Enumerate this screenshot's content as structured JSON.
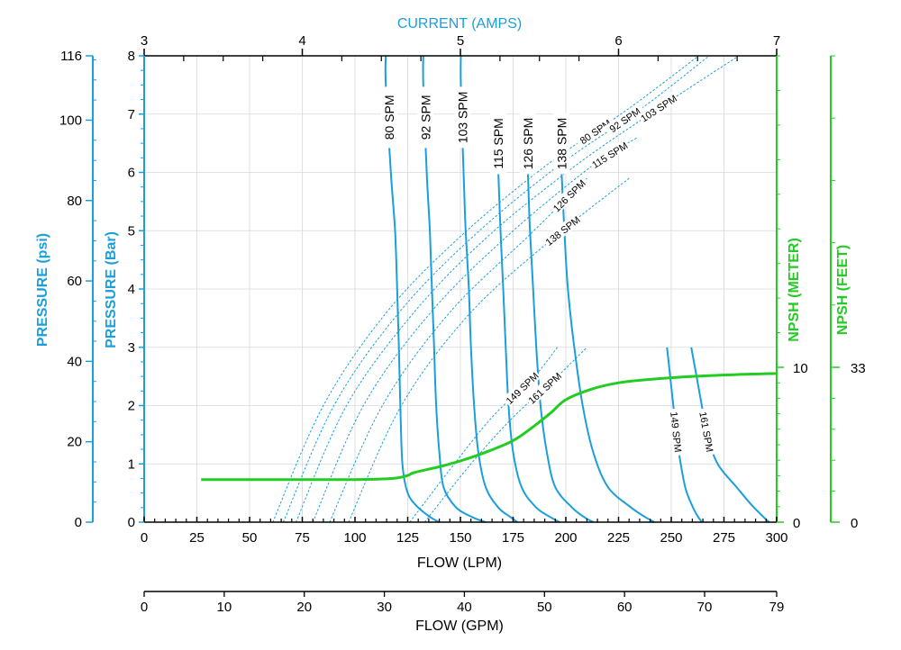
{
  "colors": {
    "blue": "#1a9fdc",
    "green": "#22cc22",
    "black": "#000000",
    "grid": "#d8d8d8"
  },
  "chart_data": {
    "type": "line",
    "grid": true,
    "axes": {
      "flow_lpm": {
        "label": "FLOW (LPM)",
        "range": [
          0,
          300
        ],
        "ticks": [
          "0",
          "25",
          "50",
          "75",
          "100",
          "125",
          "150",
          "175",
          "200",
          "225",
          "250",
          "275",
          "300"
        ]
      },
      "flow_gpm": {
        "label": "FLOW (GPM)",
        "range": [
          0,
          79
        ],
        "ticks": [
          "0",
          "10",
          "20",
          "30",
          "40",
          "50",
          "60",
          "70",
          "79"
        ]
      },
      "current": {
        "label": "CURRENT (AMPS)",
        "range": [
          3,
          7
        ],
        "ticks": [
          "3",
          "4",
          "5",
          "6",
          "7"
        ]
      },
      "pressure_bar": {
        "label": "PRESSURE (Bar)",
        "range": [
          0,
          8
        ],
        "ticks": [
          "0",
          "1",
          "2",
          "3",
          "4",
          "5",
          "6",
          "7",
          "8"
        ]
      },
      "pressure_psi": {
        "label": "PRESSURE (psi)",
        "range": [
          0,
          116
        ],
        "ticks": [
          "0",
          "20",
          "40",
          "60",
          "80",
          "100",
          "116"
        ]
      },
      "npsh_meter": {
        "label": "NPSH (METER)",
        "ticks": [
          "0",
          "10"
        ]
      },
      "npsh_feet": {
        "label": "NPSH (FEET)",
        "ticks": [
          "0",
          "33"
        ]
      }
    },
    "flow_curves": [
      {
        "name": "80 SPM",
        "label_bar": 6.45,
        "points": [
          [
            114.6,
            8.0
          ],
          [
            114.6,
            7.5
          ],
          [
            117,
            6.0
          ],
          [
            119,
            5.0
          ],
          [
            120,
            4.0
          ],
          [
            120.8,
            3.0
          ],
          [
            121.5,
            2.0
          ],
          [
            122.5,
            1.0
          ],
          [
            125,
            0.5
          ],
          [
            130,
            0.25
          ],
          [
            136,
            0.08
          ],
          [
            140,
            0
          ]
        ]
      },
      {
        "name": "92 SPM",
        "label_bar": 6.45,
        "points": [
          [
            132.4,
            8.0
          ],
          [
            132.4,
            7.5
          ],
          [
            134,
            6.0
          ],
          [
            135.5,
            5.0
          ],
          [
            136.5,
            4.0
          ],
          [
            137.5,
            3.0
          ],
          [
            138.5,
            2.0
          ],
          [
            140,
            1.2
          ],
          [
            142,
            0.6
          ],
          [
            148,
            0.25
          ],
          [
            156,
            0.08
          ],
          [
            162,
            0
          ]
        ]
      },
      {
        "name": "103 SPM",
        "label_bar": 6.45,
        "points": [
          [
            150.2,
            8.0
          ],
          [
            150.2,
            7.5
          ],
          [
            151.5,
            6.0
          ],
          [
            152.5,
            5.0
          ],
          [
            154,
            4.0
          ],
          [
            155,
            3.0
          ],
          [
            156.5,
            2.0
          ],
          [
            158.5,
            1.2
          ],
          [
            162,
            0.6
          ],
          [
            168,
            0.25
          ],
          [
            174,
            0.08
          ],
          [
            177,
            0
          ]
        ]
      },
      {
        "name": "115 SPM",
        "label_bar": 6.0,
        "points": [
          [
            168,
            6.0
          ],
          [
            169,
            5.0
          ],
          [
            170.3,
            4.0
          ],
          [
            171.5,
            3.0
          ],
          [
            172.8,
            2.0
          ],
          [
            175,
            1.2
          ],
          [
            179,
            0.6
          ],
          [
            186,
            0.25
          ],
          [
            193,
            0.08
          ],
          [
            197,
            0
          ]
        ]
      },
      {
        "name": "126 SPM",
        "label_bar": 6.0,
        "points": [
          [
            182,
            6.0
          ],
          [
            183,
            5.0
          ],
          [
            184.5,
            4.0
          ],
          [
            186,
            3.0
          ],
          [
            188,
            2.0
          ],
          [
            191,
            1.2
          ],
          [
            195,
            0.6
          ],
          [
            203,
            0.25
          ],
          [
            209,
            0.08
          ],
          [
            213,
            0
          ]
        ]
      },
      {
        "name": "138 SPM",
        "label_bar": 6.0,
        "points": [
          [
            198,
            6.0
          ],
          [
            199.3,
            5.0
          ],
          [
            201,
            4.0
          ],
          [
            204,
            3.0
          ],
          [
            208,
            2.0
          ],
          [
            213,
            1.2
          ],
          [
            220,
            0.6
          ],
          [
            231,
            0.25
          ],
          [
            238,
            0.08
          ],
          [
            242,
            0
          ]
        ]
      },
      {
        "name": "149 SPM",
        "label_bar": 1.9,
        "points": [
          [
            248,
            3.0
          ],
          [
            249.5,
            2.5
          ],
          [
            251,
            2.0
          ],
          [
            252.5,
            1.5
          ],
          [
            254.5,
            1.0
          ],
          [
            257,
            0.55
          ],
          [
            261,
            0.2
          ],
          [
            263.5,
            0.05
          ],
          [
            264.5,
            0
          ]
        ]
      },
      {
        "name": "161 SPM",
        "label_bar": 1.9,
        "points": [
          [
            259.5,
            3.0
          ],
          [
            262,
            2.5
          ],
          [
            264.5,
            2.0
          ],
          [
            267,
            1.5
          ],
          [
            272,
            1.0
          ],
          [
            281,
            0.6
          ],
          [
            288,
            0.3
          ],
          [
            294,
            0.08
          ],
          [
            296.5,
            0
          ]
        ]
      }
    ],
    "current_curves": [
      {
        "name": "80 SPM",
        "points": [
          [
            61,
            0
          ],
          [
            85,
            2.0
          ],
          [
            115,
            3.6
          ],
          [
            150,
            4.9
          ],
          [
            190,
            6.1
          ],
          [
            230,
            7.1
          ],
          [
            263,
            8.0
          ]
        ]
      },
      {
        "name": "92 SPM",
        "points": [
          [
            66,
            0
          ],
          [
            90,
            2.0
          ],
          [
            121,
            3.6
          ],
          [
            156,
            4.9
          ],
          [
            196,
            6.1
          ],
          [
            236,
            7.1
          ],
          [
            268,
            8.0
          ]
        ]
      },
      {
        "name": "103 SPM",
        "points": [
          [
            72,
            0
          ],
          [
            96,
            2.0
          ],
          [
            128,
            3.6
          ],
          [
            163,
            4.9
          ],
          [
            204,
            6.1
          ],
          [
            244,
            7.1
          ],
          [
            282,
            8.0
          ]
        ]
      },
      {
        "name": "115 SPM",
        "points": [
          [
            80,
            0
          ],
          [
            104,
            2.0
          ],
          [
            136,
            3.6
          ],
          [
            172,
            4.9
          ],
          [
            212,
            6.1
          ],
          [
            234,
            6.6
          ]
        ]
      },
      {
        "name": "126 SPM",
        "points": [
          [
            88,
            0
          ],
          [
            113,
            2.0
          ],
          [
            145,
            3.6
          ],
          [
            182,
            4.9
          ],
          [
            210,
            5.9
          ]
        ]
      },
      {
        "name": "138 SPM",
        "points": [
          [
            97,
            0
          ],
          [
            122,
            2.0
          ],
          [
            155,
            3.6
          ],
          [
            195,
            4.9
          ],
          [
            230,
            5.9
          ]
        ]
      },
      {
        "name": "149 SPM",
        "points": [
          [
            126,
            0
          ],
          [
            145,
            0.9
          ],
          [
            165,
            1.8
          ],
          [
            185,
            2.5
          ],
          [
            196,
            3.0
          ]
        ]
      },
      {
        "name": "161 SPM",
        "points": [
          [
            133,
            0
          ],
          [
            155,
            1.0
          ],
          [
            175,
            1.8
          ],
          [
            196,
            2.5
          ],
          [
            210,
            3.0
          ]
        ]
      }
    ],
    "npsh_curve": {
      "points": [
        [
          27,
          0.73
        ],
        [
          60,
          0.73
        ],
        [
          100,
          0.73
        ],
        [
          118,
          0.75
        ],
        [
          125,
          0.8
        ],
        [
          128,
          0.85
        ],
        [
          140,
          0.95
        ],
        [
          150,
          1.05
        ],
        [
          162,
          1.2
        ],
        [
          175,
          1.4
        ],
        [
          185,
          1.65
        ],
        [
          193,
          1.88
        ],
        [
          200,
          2.1
        ],
        [
          212,
          2.28
        ],
        [
          225,
          2.39
        ],
        [
          240,
          2.45
        ],
        [
          260,
          2.5
        ],
        [
          280,
          2.53
        ],
        [
          300,
          2.55
        ]
      ]
    }
  }
}
